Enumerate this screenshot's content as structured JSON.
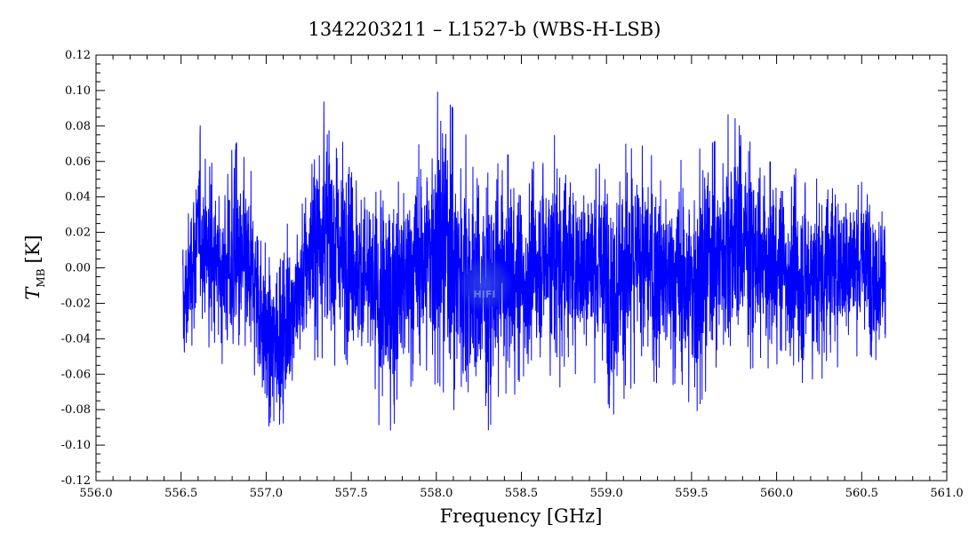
{
  "chart_data": {
    "type": "line",
    "title": "1342203211 – L1527-b (WBS-H-LSB)",
    "xlabel": "Frequency [GHz]",
    "ylabel": "T",
    "ylabel_subscript": "MB",
    "ylabel_unit": "[K]",
    "xlim": [
      556.0,
      561.0
    ],
    "ylim": [
      -0.12,
      0.12
    ],
    "x_ticks": [
      "556.0",
      "556.5",
      "557.0",
      "557.5",
      "558.0",
      "558.5",
      "559.0",
      "559.5",
      "560.0",
      "560.5",
      "561.0"
    ],
    "y_ticks": [
      "-0.12",
      "-0.10",
      "-0.08",
      "-0.06",
      "-0.04",
      "-0.02",
      "0.00",
      "0.02",
      "0.04",
      "0.06",
      "0.08",
      "0.10",
      "0.12"
    ],
    "grid": false,
    "series": [
      {
        "color": "#0000ff",
        "x_range": [
          556.51,
          560.64
        ],
        "noise_rms": 0.025,
        "envelope": [
          {
            "x": 556.52,
            "min": -0.07,
            "max": 0.025
          },
          {
            "x": 556.56,
            "min": -0.046,
            "max": 0.05
          },
          {
            "x": 556.61,
            "min": -0.04,
            "max": 0.081
          },
          {
            "x": 556.72,
            "min": -0.05,
            "max": 0.047
          },
          {
            "x": 556.82,
            "min": -0.07,
            "max": 0.072
          },
          {
            "x": 556.93,
            "min": -0.06,
            "max": 0.051
          },
          {
            "x": 557.02,
            "min": -0.105,
            "max": 0.01
          },
          {
            "x": 557.1,
            "min": -0.088,
            "max": 0.02
          },
          {
            "x": 557.2,
            "min": -0.06,
            "max": 0.04
          },
          {
            "x": 557.31,
            "min": -0.05,
            "max": 0.098
          },
          {
            "x": 557.4,
            "min": -0.055,
            "max": 0.085
          },
          {
            "x": 557.5,
            "min": -0.06,
            "max": 0.07
          },
          {
            "x": 557.6,
            "min": -0.075,
            "max": 0.06
          },
          {
            "x": 557.7,
            "min": -0.097,
            "max": 0.055
          },
          {
            "x": 557.8,
            "min": -0.08,
            "max": 0.06
          },
          {
            "x": 557.9,
            "min": -0.07,
            "max": 0.07
          },
          {
            "x": 558.01,
            "min": -0.065,
            "max": 0.1
          },
          {
            "x": 558.1,
            "min": -0.08,
            "max": 0.09
          },
          {
            "x": 558.2,
            "min": -0.086,
            "max": 0.07
          },
          {
            "x": 558.3,
            "min": -0.093,
            "max": 0.06
          },
          {
            "x": 558.4,
            "min": -0.07,
            "max": 0.065
          },
          {
            "x": 558.5,
            "min": -0.08,
            "max": 0.06
          },
          {
            "x": 558.6,
            "min": -0.055,
            "max": 0.06
          },
          {
            "x": 558.7,
            "min": -0.07,
            "max": 0.086
          },
          {
            "x": 558.8,
            "min": -0.06,
            "max": 0.06
          },
          {
            "x": 558.9,
            "min": -0.06,
            "max": 0.065
          },
          {
            "x": 559.04,
            "min": -0.083,
            "max": 0.07
          },
          {
            "x": 559.2,
            "min": -0.06,
            "max": 0.07
          },
          {
            "x": 559.35,
            "min": -0.068,
            "max": 0.055
          },
          {
            "x": 559.5,
            "min": -0.088,
            "max": 0.065
          },
          {
            "x": 559.65,
            "min": -0.055,
            "max": 0.072
          },
          {
            "x": 559.77,
            "min": -0.06,
            "max": 0.099
          },
          {
            "x": 559.9,
            "min": -0.055,
            "max": 0.06
          },
          {
            "x": 560.05,
            "min": -0.06,
            "max": 0.06
          },
          {
            "x": 560.13,
            "min": -0.073,
            "max": 0.055
          },
          {
            "x": 560.3,
            "min": -0.06,
            "max": 0.06
          },
          {
            "x": 560.45,
            "min": -0.05,
            "max": 0.055
          },
          {
            "x": 560.55,
            "min": -0.05,
            "max": 0.055
          },
          {
            "x": 560.63,
            "min": -0.055,
            "max": 0.045
          }
        ]
      }
    ],
    "watermark": "HIFI"
  }
}
